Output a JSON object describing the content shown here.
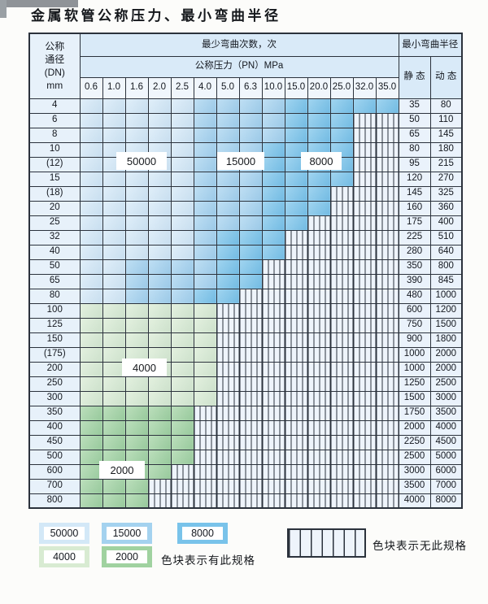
{
  "title": "金属软管公称压力、最小弯曲半径",
  "colors": {
    "grid": "#2b323c",
    "blue_a": "#d3e8f7",
    "blue_b": "#a4d2ef",
    "blue_c": "#79c3ea",
    "green_d": "#d8ebd2",
    "green_e": "#a0d2a0",
    "hatch_bg": "#eef4fb",
    "head_bg": "#d9eaf8",
    "dn_bg": "#e7f1fa",
    "val_bg": "#eaf2fb"
  },
  "table": {
    "header": {
      "dn_lines": [
        "公称",
        "通径",
        "(DN)",
        "mm"
      ],
      "bend_cycles": "最少弯曲次数，次",
      "pressure": "公称压力（PN）MPa",
      "min_radius": "最小弯曲半径",
      "static_label": "静 态",
      "dynamic_label": "动 态",
      "pressures": [
        "0.6",
        "1.0",
        "1.6",
        "2.0",
        "2.5",
        "4.0",
        "5.0",
        "6.3",
        "10.0",
        "15.0",
        "20.0",
        "25.0",
        "32.0",
        "35.0"
      ]
    },
    "zone_legend_note": "a=50000 b=15000 c=8000 d=4000 e=2000 h=no-spec",
    "rows": [
      {
        "dn": "4",
        "cells": "aaaaabbbbccccc",
        "static": "35",
        "dynamic": "80"
      },
      {
        "dn": "6",
        "cells": "aaaaabbbbccchh",
        "static": "50",
        "dynamic": "110"
      },
      {
        "dn": "8",
        "cells": "aaaaabbbbccchh",
        "static": "65",
        "dynamic": "145"
      },
      {
        "dn": "10",
        "cells": "aaaaabbbcccchh",
        "static": "80",
        "dynamic": "180"
      },
      {
        "dn": "(12)",
        "cells": "aaaaabbbcccchh",
        "static": "95",
        "dynamic": "215"
      },
      {
        "dn": "15",
        "cells": "aaaaabbbcccchh",
        "static": "120",
        "dynamic": "270"
      },
      {
        "dn": "(18)",
        "cells": "aaaaabbbccchhh",
        "static": "145",
        "dynamic": "325"
      },
      {
        "dn": "20",
        "cells": "aaaaabbbccchhh",
        "static": "160",
        "dynamic": "360"
      },
      {
        "dn": "25",
        "cells": "aaaaabbbcchhhh",
        "static": "175",
        "dynamic": "400"
      },
      {
        "dn": "32",
        "cells": "aaaaabccchhhhh",
        "static": "225",
        "dynamic": "510"
      },
      {
        "dn": "40",
        "cells": "aaaaabccchhhhh",
        "static": "280",
        "dynamic": "640"
      },
      {
        "dn": "50",
        "cells": "aabbbbcchhhhhh",
        "static": "350",
        "dynamic": "800"
      },
      {
        "dn": "65",
        "cells": "aabbbbcchhhhhh",
        "static": "390",
        "dynamic": "845"
      },
      {
        "dn": "80",
        "cells": "aabbbcchhhhhhh",
        "static": "480",
        "dynamic": "1000"
      },
      {
        "dn": "100",
        "cells": "ddddddhhhhhhhh",
        "static": "600",
        "dynamic": "1200"
      },
      {
        "dn": "125",
        "cells": "ddddddhhhhhhhh",
        "static": "750",
        "dynamic": "1500"
      },
      {
        "dn": "150",
        "cells": "ddddddhhhhhhhh",
        "static": "900",
        "dynamic": "1800"
      },
      {
        "dn": "(175)",
        "cells": "ddddddhhhhhhhh",
        "static": "1000",
        "dynamic": "2000"
      },
      {
        "dn": "200",
        "cells": "ddddddhhhhhhhh",
        "static": "1000",
        "dynamic": "2000"
      },
      {
        "dn": "250",
        "cells": "ddddddhhhhhhhh",
        "static": "1250",
        "dynamic": "2500"
      },
      {
        "dn": "300",
        "cells": "ddddddhhhhhhhh",
        "static": "1500",
        "dynamic": "3000"
      },
      {
        "dn": "350",
        "cells": "eeeeehhhhhhhhh",
        "static": "1750",
        "dynamic": "3500"
      },
      {
        "dn": "400",
        "cells": "eeeeehhhhhhhhh",
        "static": "2000",
        "dynamic": "4000"
      },
      {
        "dn": "450",
        "cells": "eeeeehhhhhhhhh",
        "static": "2250",
        "dynamic": "4500"
      },
      {
        "dn": "500",
        "cells": "eeeeehhhhhhhhh",
        "static": "2500",
        "dynamic": "5000"
      },
      {
        "dn": "600",
        "cells": "eeeehhhhhhhhhh",
        "static": "3000",
        "dynamic": "6000"
      },
      {
        "dn": "700",
        "cells": "eeehhhhhhhhhhh",
        "static": "3500",
        "dynamic": "7000"
      },
      {
        "dn": "800",
        "cells": "eeehhhhhhhhhhh",
        "static": "4000",
        "dynamic": "8000"
      }
    ]
  },
  "overlays": {
    "v50000": "50000",
    "v15000": "15000",
    "v8000": "8000",
    "v4000": "4000",
    "v2000": "2000"
  },
  "legend": {
    "items": [
      {
        "label": "50000",
        "zone": "a"
      },
      {
        "label": "15000",
        "zone": "b"
      },
      {
        "label": "8000",
        "zone": "c"
      },
      {
        "label": "4000",
        "zone": "d"
      },
      {
        "label": "2000",
        "zone": "e"
      }
    ],
    "has_spec": "色块表示有此规格",
    "no_spec": "色块表示无此规格"
  }
}
